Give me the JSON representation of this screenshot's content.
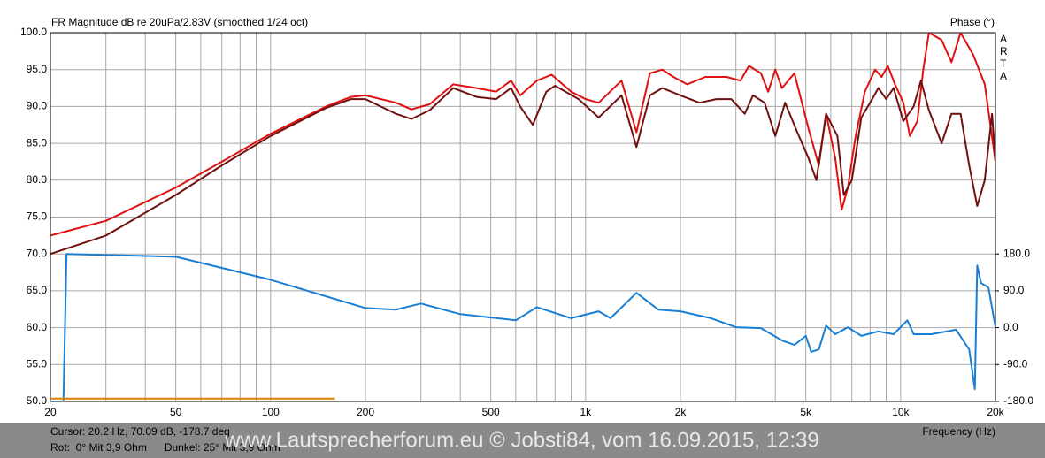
{
  "chart_data": {
    "type": "line",
    "title": "FR Magnitude dB re 20uPa/2.83V (smoothed 1/24 oct)",
    "y2_label": "Phase (°)",
    "brand": [
      "A",
      "R",
      "T",
      "A"
    ],
    "x_label": "Frequency (Hz)",
    "cursor_text": "Cursor: 20.2 Hz, 70.09 dB, -178.7 deg",
    "info_text": "Rot:  0° Mit 3,9 Ohm      Dunkel: 25° Mit 3,9 Ohm",
    "watermark": "www.Lautsprecherforum.eu © Jobsti84, vom 16.09.2015, 12:39",
    "xlog": true,
    "grid": true,
    "xlim": [
      20,
      20000
    ],
    "xticks": [
      20,
      50,
      100,
      200,
      500,
      {
        "value": 1000,
        "label": "1k"
      },
      {
        "value": 2000,
        "label": "2k"
      },
      {
        "value": 5000,
        "label": "5k"
      },
      {
        "value": 10000,
        "label": "10k"
      },
      {
        "value": 20000,
        "label": "20k"
      }
    ],
    "xminorticks": [
      30,
      40,
      60,
      70,
      80,
      90,
      300,
      400,
      600,
      700,
      800,
      900,
      3000,
      4000,
      6000,
      7000,
      8000,
      9000
    ],
    "ylim": [
      50,
      100
    ],
    "yticks": [
      {
        "value": 50,
        "label": "50.0"
      },
      {
        "value": 55,
        "label": "55.0"
      },
      {
        "value": 60,
        "label": "60.0"
      },
      {
        "value": 65,
        "label": "65.0"
      },
      {
        "value": 70,
        "label": "70.0"
      },
      {
        "value": 75,
        "label": "75.0"
      },
      {
        "value": 80,
        "label": "80.0"
      },
      {
        "value": 85,
        "label": "85.0"
      },
      {
        "value": 90,
        "label": "90.0"
      },
      {
        "value": 95,
        "label": "95.0"
      },
      {
        "value": 100,
        "label": "100.0"
      }
    ],
    "y2lim": [
      -180,
      720
    ],
    "y2ticks": [
      {
        "value": -180,
        "label": "-180.0"
      },
      {
        "value": -90,
        "label": "-90.0"
      },
      {
        "value": 0,
        "label": "0.0"
      },
      {
        "value": 90,
        "label": "90.0"
      },
      {
        "value": 180,
        "label": "180.0"
      }
    ],
    "series": [
      {
        "color": "#e01010",
        "x": [
          20,
          30,
          50,
          70,
          100,
          150,
          180,
          200,
          250,
          280,
          320,
          380,
          450,
          520,
          580,
          620,
          700,
          780,
          900,
          1000,
          1100,
          1300,
          1450,
          1600,
          1750,
          1900,
          2100,
          2400,
          2800,
          3100,
          3300,
          3600,
          3800,
          4000,
          4200,
          4600,
          5100,
          5500,
          5800,
          6200,
          6500,
          6800,
          7200,
          7700,
          8300,
          8700,
          9100,
          9600,
          10200,
          10700,
          11300,
          11800,
          12300,
          13500,
          14500,
          15500,
          17000,
          18500,
          20000
        ],
        "values": [
          72.5,
          74.5,
          79,
          82.5,
          86.3,
          90,
          91.3,
          91.5,
          90.5,
          89.6,
          90.3,
          93,
          92.5,
          92,
          93.5,
          91.5,
          93.5,
          94.3,
          92,
          91,
          90.5,
          93.5,
          86.5,
          94.5,
          95,
          94,
          93,
          94,
          94,
          93.5,
          95.5,
          94.5,
          92,
          95,
          92.5,
          94.5,
          87,
          82,
          89,
          83,
          76,
          79,
          86,
          92,
          95,
          94,
          95.5,
          93,
          90.5,
          86,
          88,
          95,
          100,
          99,
          96,
          100,
          97,
          93,
          82.5
        ]
      },
      {
        "color": "#701010",
        "x": [
          20,
          30,
          50,
          70,
          100,
          150,
          180,
          200,
          250,
          280,
          320,
          380,
          450,
          520,
          580,
          620,
          680,
          750,
          800,
          950,
          1100,
          1300,
          1450,
          1600,
          1750,
          2000,
          2300,
          2600,
          2900,
          3200,
          3400,
          3700,
          4000,
          4300,
          4700,
          5100,
          5400,
          5800,
          6300,
          6600,
          7000,
          7500,
          8000,
          8500,
          9000,
          9500,
          10200,
          11000,
          11600,
          12300,
          13500,
          14500,
          15500,
          16500,
          17500,
          18500,
          19500,
          20000
        ],
        "values": [
          70,
          72.5,
          78,
          82,
          86,
          89.8,
          91,
          91,
          89,
          88.3,
          89.5,
          92.5,
          91.3,
          91,
          92.5,
          90,
          87.5,
          92,
          92.8,
          91,
          88.5,
          91.5,
          84.5,
          91.5,
          92.5,
          91.5,
          90.5,
          91,
          91,
          89,
          91.5,
          90.5,
          86,
          90.5,
          86.5,
          83,
          80,
          89,
          86,
          78,
          80,
          88.5,
          90.5,
          92.5,
          91,
          92.5,
          88,
          90,
          93.5,
          89.5,
          85,
          89,
          89,
          82,
          76.5,
          80,
          89,
          82.5
        ]
      },
      {
        "color": "#1a7fd4",
        "axis": "y2",
        "x": [
          20,
          22,
          22.5,
          50,
          100,
          200,
          250,
          300,
          400,
          600,
          700,
          900,
          1100,
          1200,
          1450,
          1700,
          2000,
          2500,
          3000,
          3600,
          4200,
          4600,
          5000,
          5200,
          5500,
          5800,
          6200,
          6800,
          7500,
          8500,
          9500,
          10500,
          11000,
          12500,
          15000,
          16500,
          17200,
          17500,
          18000,
          19000,
          20000
        ],
        "values": [
          -180,
          -180,
          180,
          173,
          117,
          48,
          44,
          59,
          33,
          18,
          50,
          23,
          40,
          23,
          85,
          44,
          40,
          23,
          1,
          -1,
          -31,
          -42,
          -20,
          -59,
          -53,
          5,
          -16,
          1,
          -20,
          -9,
          -16,
          18,
          -16,
          -16,
          -5,
          -53,
          -150,
          152,
          109,
          98,
          1
        ]
      },
      {
        "color": "#e08000",
        "x": [
          20,
          160
        ],
        "values": [
          50.4,
          50.4
        ]
      }
    ]
  }
}
